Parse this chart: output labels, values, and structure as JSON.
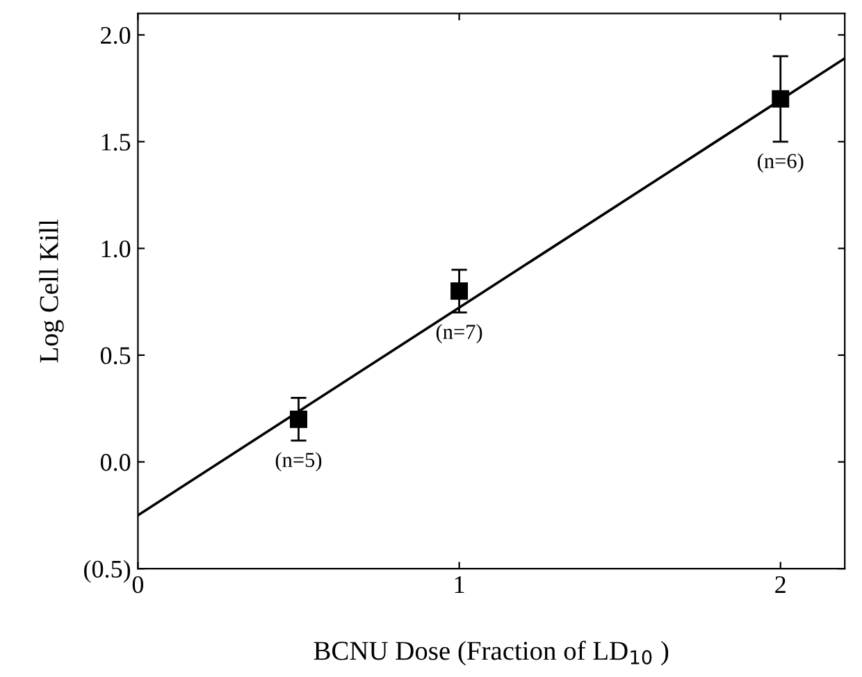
{
  "chart_data": {
    "type": "scatter",
    "xlabel": "BCNU Dose (Fraction of LD$_{10}$ )",
    "ylabel": "Log Cell Kill",
    "xlim": [
      0,
      2.2
    ],
    "ylim": [
      -0.5,
      2.1
    ],
    "xticks": [
      0,
      1,
      2
    ],
    "yticks": [
      {
        "value": -0.5,
        "label": "(0.5)"
      },
      {
        "value": 0.0,
        "label": "0.0"
      },
      {
        "value": 0.5,
        "label": "0.5"
      },
      {
        "value": 1.0,
        "label": "1.0"
      },
      {
        "value": 1.5,
        "label": "1.5"
      },
      {
        "value": 2.0,
        "label": "2.0"
      }
    ],
    "marker": "square",
    "series": [
      {
        "color": "#000000",
        "x": [
          0.5,
          1,
          2
        ],
        "values": [
          0.2,
          0.8,
          1.7
        ],
        "errors": [
          0.1,
          0.1,
          0.2
        ]
      },
      {
        "type": "line",
        "marker": "none",
        "color": "#000000",
        "x": [
          0,
          2.2
        ],
        "values": [
          -0.25,
          1.89
        ]
      }
    ],
    "annotations": [
      {
        "text": "(n=5)",
        "x": 0.5,
        "y": 0.2
      },
      {
        "text": "(n=7)",
        "x": 1,
        "y": 0.8
      },
      {
        "text": "(n=6)",
        "x": 2,
        "y": 1.7
      }
    ]
  }
}
